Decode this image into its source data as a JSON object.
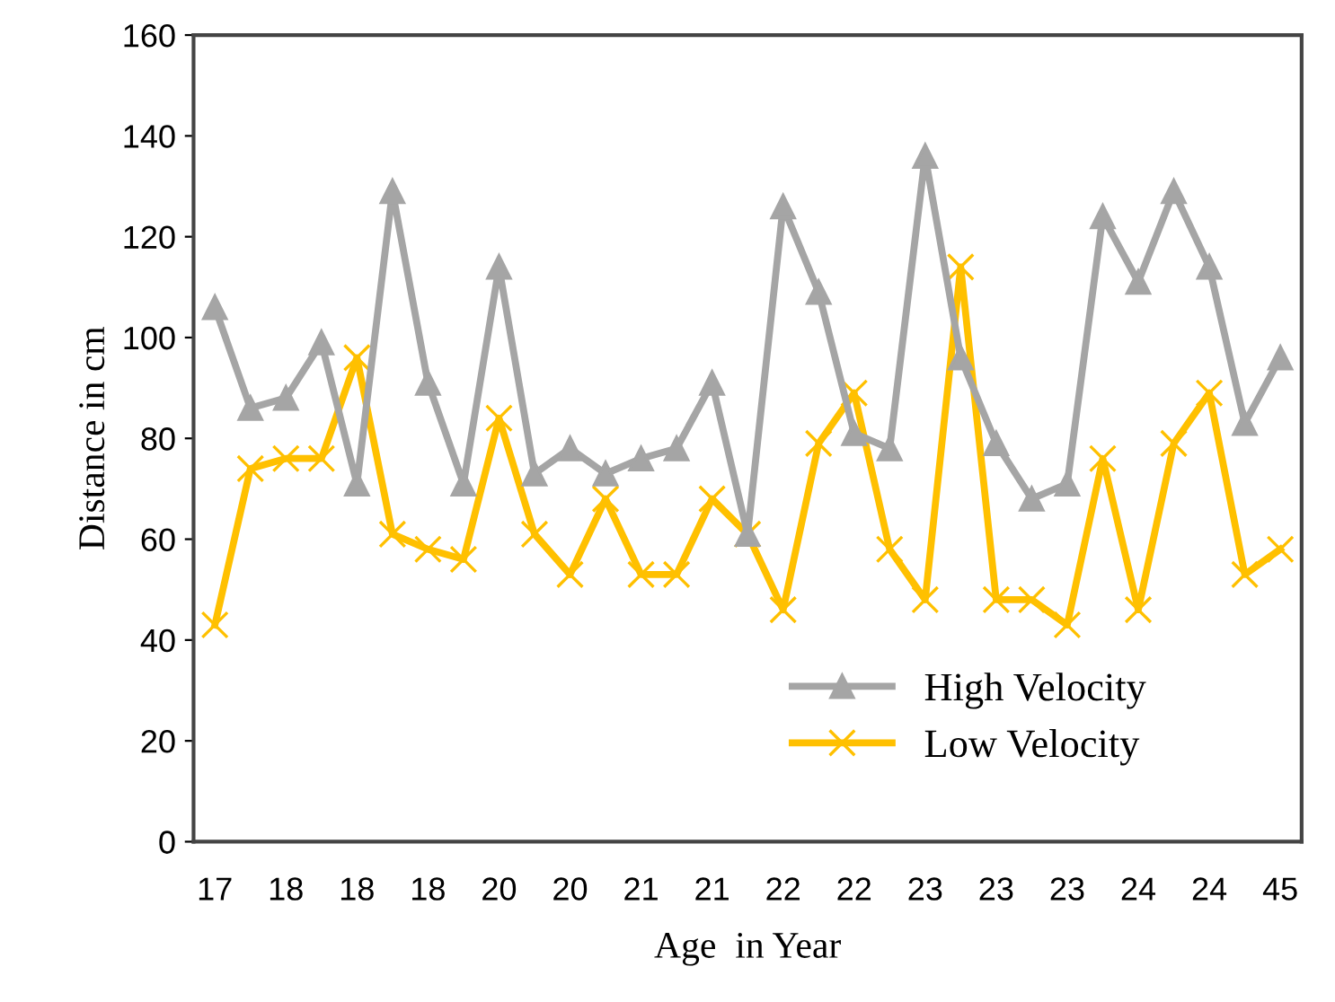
{
  "chart_data": {
    "type": "line",
    "xlabel": "Age  in Year",
    "ylabel": "Distance in cm",
    "categories": [
      "17",
      null,
      "18",
      null,
      "18",
      null,
      "18",
      null,
      "20",
      null,
      "20",
      null,
      "21",
      null,
      "21",
      null,
      "22",
      null,
      "22",
      null,
      "23",
      null,
      "23",
      null,
      "23",
      null,
      "24",
      null,
      "24",
      null,
      "45"
    ],
    "series": [
      {
        "name": "High Velocity",
        "color": "#a5a5a5",
        "marker": "triangle",
        "values": [
          106,
          86,
          88,
          99,
          71,
          129,
          91,
          71,
          114,
          73,
          78,
          73,
          76,
          78,
          91,
          61,
          126,
          109,
          81,
          78,
          136,
          96,
          79,
          68,
          71,
          124,
          111,
          129,
          114,
          83,
          96
        ]
      },
      {
        "name": "Low Velocity",
        "color": "#ffc000",
        "marker": "cross",
        "values": [
          43,
          74,
          76,
          76,
          96,
          61,
          58,
          56,
          84,
          61,
          53,
          68,
          53,
          53,
          68,
          61,
          46,
          79,
          89,
          58,
          48,
          114,
          48,
          48,
          43,
          76,
          46,
          79,
          89,
          53,
          58
        ]
      }
    ],
    "ylim": [
      0,
      160
    ],
    "yticks": [
      0,
      20,
      40,
      60,
      80,
      100,
      120,
      140,
      160
    ],
    "grid": false,
    "legend": "bottom right",
    "line_style": "solid"
  }
}
